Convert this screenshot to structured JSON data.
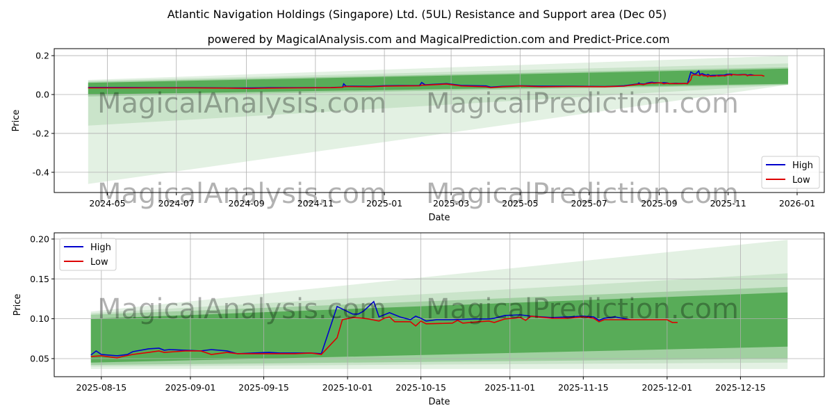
{
  "title": "Atlantic Navigation Holdings (Singapore) Ltd. (5UL) Resistance and Support area (Dec 05)",
  "subtitle": "powered by MagicalAnalysis.com and MagicalPrediction.com and Predict-Price.com",
  "watermarks": [
    "MagicalAnalysis.com",
    "MagicalPrediction.com"
  ],
  "colors": {
    "high": "#0000cc",
    "low": "#dd0000",
    "band": "#008000"
  },
  "chart_data": [
    {
      "type": "line",
      "xlabel": "Date",
      "ylabel": "Price",
      "xlim": [
        "2024-03-15",
        "2026-01-25"
      ],
      "ylim": [
        -0.504,
        0.236
      ],
      "grid": true,
      "legend": "bottom-right",
      "xticks": [
        "2024-05",
        "2024-07",
        "2024-09",
        "2024-11",
        "2025-01",
        "2025-03",
        "2025-05",
        "2025-07",
        "2025-09",
        "2025-11",
        "2026-01"
      ],
      "yticks": [
        "-0.4",
        "-0.2",
        "0.0",
        "0.2"
      ],
      "legend_entries": [
        "High",
        "Low"
      ],
      "bands": {
        "start": "2024-04-14",
        "end": "2025-12-24",
        "ranges": [
          {
            "start": [
              -0.46,
              0.075
            ],
            "end": [
              0.05,
              0.2
            ]
          },
          {
            "start": [
              -0.16,
              0.07
            ],
            "end": [
              0.05,
              0.16
            ]
          },
          {
            "start": [
              -0.01,
              0.065
            ],
            "end": [
              0.05,
              0.14
            ]
          },
          {
            "start": [
              0.0,
              0.06
            ],
            "end": [
              0.055,
              0.133
            ]
          }
        ]
      },
      "series_early": [
        {
          "name": "High",
          "points": [
            [
              "2024-04-14",
              0.036
            ],
            [
              "2024-05-15",
              0.036
            ],
            [
              "2024-06-15",
              0.035
            ],
            [
              "2024-07-15",
              0.035
            ],
            [
              "2024-08-15",
              0.034
            ],
            [
              "2024-09-05",
              0.034
            ],
            [
              "2024-09-20",
              0.035
            ],
            [
              "2024-10-15",
              0.035
            ],
            [
              "2024-11-15",
              0.036
            ],
            [
              "2024-11-25",
              0.038
            ],
            [
              "2024-11-26",
              0.055
            ],
            [
              "2024-11-28",
              0.043
            ],
            [
              "2024-12-20",
              0.042
            ],
            [
              "2025-01-01",
              0.045
            ],
            [
              "2025-01-15",
              0.046
            ],
            [
              "2025-02-01",
              0.046
            ],
            [
              "2025-02-03",
              0.062
            ],
            [
              "2025-02-06",
              0.05
            ],
            [
              "2025-02-25",
              0.056
            ],
            [
              "2025-03-10",
              0.047
            ],
            [
              "2025-04-01",
              0.044
            ],
            [
              "2025-04-05",
              0.038
            ],
            [
              "2025-04-15",
              0.042
            ],
            [
              "2025-05-01",
              0.045
            ],
            [
              "2025-05-20",
              0.043
            ],
            [
              "2025-06-15",
              0.043
            ],
            [
              "2025-07-15",
              0.041
            ],
            [
              "2025-08-01",
              0.045
            ]
          ]
        },
        {
          "name": "Low",
          "points": [
            [
              "2024-04-14",
              0.034
            ],
            [
              "2024-05-15",
              0.034
            ],
            [
              "2024-06-15",
              0.034
            ],
            [
              "2024-07-15",
              0.034
            ],
            [
              "2024-08-15",
              0.033
            ],
            [
              "2024-09-05",
              0.031
            ],
            [
              "2024-09-20",
              0.033
            ],
            [
              "2024-10-15",
              0.034
            ],
            [
              "2024-11-15",
              0.035
            ],
            [
              "2024-11-25",
              0.037
            ],
            [
              "2024-11-26",
              0.04
            ],
            [
              "2024-11-28",
              0.041
            ],
            [
              "2024-12-20",
              0.04
            ],
            [
              "2025-01-01",
              0.043
            ],
            [
              "2025-01-15",
              0.044
            ],
            [
              "2025-02-01",
              0.045
            ],
            [
              "2025-02-03",
              0.048
            ],
            [
              "2025-02-06",
              0.048
            ],
            [
              "2025-02-25",
              0.054
            ],
            [
              "2025-03-10",
              0.044
            ],
            [
              "2025-04-01",
              0.04
            ],
            [
              "2025-04-05",
              0.035
            ],
            [
              "2025-04-15",
              0.04
            ],
            [
              "2025-05-01",
              0.044
            ],
            [
              "2025-05-20",
              0.04
            ],
            [
              "2025-06-15",
              0.041
            ],
            [
              "2025-07-15",
              0.04
            ],
            [
              "2025-08-01",
              0.043
            ]
          ]
        }
      ]
    },
    {
      "type": "line",
      "xlabel": "Date",
      "ylabel": "Price",
      "xlim": [
        "2025-08-06",
        "2025-12-31"
      ],
      "ylim": [
        0.0273,
        0.2078
      ],
      "grid": true,
      "legend": "top-left",
      "xticks": [
        "2025-08-15",
        "2025-09-01",
        "2025-09-15",
        "2025-10-01",
        "2025-10-15",
        "2025-11-01",
        "2025-11-15",
        "2025-12-01",
        "2025-12-15"
      ],
      "yticks": [
        "0.05",
        "0.10",
        "0.15",
        "0.20"
      ],
      "legend_entries": [
        "High",
        "Low"
      ],
      "bands": {
        "start": "2025-08-13",
        "end": "2025-12-24",
        "ranges": [
          {
            "start": [
              0.037,
              0.109
            ],
            "end": [
              0.037,
              0.199
            ]
          },
          {
            "start": [
              0.04,
              0.107
            ],
            "end": [
              0.045,
              0.157
            ]
          },
          {
            "start": [
              0.042,
              0.105
            ],
            "end": [
              0.05,
              0.14
            ]
          },
          {
            "start": [
              0.045,
              0.1
            ],
            "end": [
              0.065,
              0.133
            ]
          }
        ]
      },
      "series": [
        {
          "name": "High",
          "points": [
            [
              "2025-08-13",
              0.0544
            ],
            [
              "2025-08-14",
              0.0596
            ],
            [
              "2025-08-15",
              0.0552
            ],
            [
              "2025-08-18",
              0.0535
            ],
            [
              "2025-08-20",
              0.0552
            ],
            [
              "2025-08-21",
              0.0587
            ],
            [
              "2025-08-24",
              0.0622
            ],
            [
              "2025-08-26",
              0.0631
            ],
            [
              "2025-08-27",
              0.0605
            ],
            [
              "2025-08-28",
              0.0613
            ],
            [
              "2025-08-31",
              0.0605
            ],
            [
              "2025-09-03",
              0.0596
            ],
            [
              "2025-09-05",
              0.0613
            ],
            [
              "2025-09-08",
              0.0596
            ],
            [
              "2025-09-10",
              0.0561
            ],
            [
              "2025-09-13",
              0.057
            ],
            [
              "2025-09-16",
              0.0578
            ],
            [
              "2025-09-18",
              0.057
            ],
            [
              "2025-09-21",
              0.057
            ],
            [
              "2025-09-24",
              0.057
            ],
            [
              "2025-09-26",
              0.0561
            ],
            [
              "2025-09-29",
              0.1154
            ],
            [
              "2025-10-02",
              0.1058
            ],
            [
              "2025-10-03",
              0.1058
            ],
            [
              "2025-10-04",
              0.1093
            ],
            [
              "2025-10-06",
              0.1215
            ],
            [
              "2025-10-07",
              0.1023
            ],
            [
              "2025-10-09",
              0.1076
            ],
            [
              "2025-10-11",
              0.1023
            ],
            [
              "2025-10-13",
              0.0988
            ],
            [
              "2025-10-14",
              0.1032
            ],
            [
              "2025-10-15",
              0.1006
            ],
            [
              "2025-10-16",
              0.0971
            ],
            [
              "2025-10-18",
              0.0988
            ],
            [
              "2025-10-21",
              0.0988
            ],
            [
              "2025-10-25",
              0.0997
            ],
            [
              "2025-10-28",
              0.0997
            ],
            [
              "2025-10-29",
              0.1006
            ],
            [
              "2025-10-31",
              0.1041
            ],
            [
              "2025-11-03",
              0.1049
            ],
            [
              "2025-11-05",
              0.1032
            ],
            [
              "2025-11-09",
              0.1015
            ],
            [
              "2025-11-12",
              0.1023
            ],
            [
              "2025-11-15",
              0.1032
            ],
            [
              "2025-11-17",
              0.1023
            ],
            [
              "2025-11-18",
              0.098
            ],
            [
              "2025-11-19",
              0.1006
            ],
            [
              "2025-11-21",
              0.1023
            ],
            [
              "2025-11-24",
              0.0988
            ]
          ]
        },
        {
          "name": "Low",
          "points": [
            [
              "2025-08-13",
              0.0526
            ],
            [
              "2025-08-15",
              0.0535
            ],
            [
              "2025-08-18",
              0.0509
            ],
            [
              "2025-08-19",
              0.0526
            ],
            [
              "2025-08-21",
              0.0552
            ],
            [
              "2025-08-24",
              0.0578
            ],
            [
              "2025-08-26",
              0.0596
            ],
            [
              "2025-08-27",
              0.0578
            ],
            [
              "2025-08-31",
              0.0596
            ],
            [
              "2025-09-03",
              0.0596
            ],
            [
              "2025-09-05",
              0.0552
            ],
            [
              "2025-09-08",
              0.0578
            ],
            [
              "2025-09-10",
              0.0561
            ],
            [
              "2025-09-16",
              0.0561
            ],
            [
              "2025-09-21",
              0.0561
            ],
            [
              "2025-09-24",
              0.057
            ],
            [
              "2025-09-26",
              0.0552
            ],
            [
              "2025-09-29",
              0.0762
            ],
            [
              "2025-09-30",
              0.0988
            ],
            [
              "2025-10-02",
              0.1015
            ],
            [
              "2025-10-04",
              0.1006
            ],
            [
              "2025-10-05",
              0.0997
            ],
            [
              "2025-10-07",
              0.0971
            ],
            [
              "2025-10-08",
              0.1006
            ],
            [
              "2025-10-09",
              0.1023
            ],
            [
              "2025-10-10",
              0.0962
            ],
            [
              "2025-10-13",
              0.0962
            ],
            [
              "2025-10-14",
              0.091
            ],
            [
              "2025-10-15",
              0.0971
            ],
            [
              "2025-10-16",
              0.0936
            ],
            [
              "2025-10-21",
              0.0945
            ],
            [
              "2025-10-22",
              0.098
            ],
            [
              "2025-10-23",
              0.0945
            ],
            [
              "2025-10-26",
              0.0962
            ],
            [
              "2025-10-28",
              0.0971
            ],
            [
              "2025-10-29",
              0.0953
            ],
            [
              "2025-10-31",
              0.0997
            ],
            [
              "2025-11-03",
              0.1015
            ],
            [
              "2025-11-04",
              0.098
            ],
            [
              "2025-11-05",
              0.1032
            ],
            [
              "2025-11-09",
              0.1006
            ],
            [
              "2025-11-12",
              0.1006
            ],
            [
              "2025-11-15",
              0.1023
            ],
            [
              "2025-11-17",
              0.1006
            ],
            [
              "2025-11-18",
              0.0962
            ],
            [
              "2025-11-19",
              0.0988
            ],
            [
              "2025-11-21",
              0.0988
            ],
            [
              "2025-11-24",
              0.0988
            ],
            [
              "2025-12-01",
              0.0988
            ],
            [
              "2025-12-02",
              0.0953
            ],
            [
              "2025-12-03",
              0.0953
            ]
          ]
        }
      ]
    }
  ]
}
